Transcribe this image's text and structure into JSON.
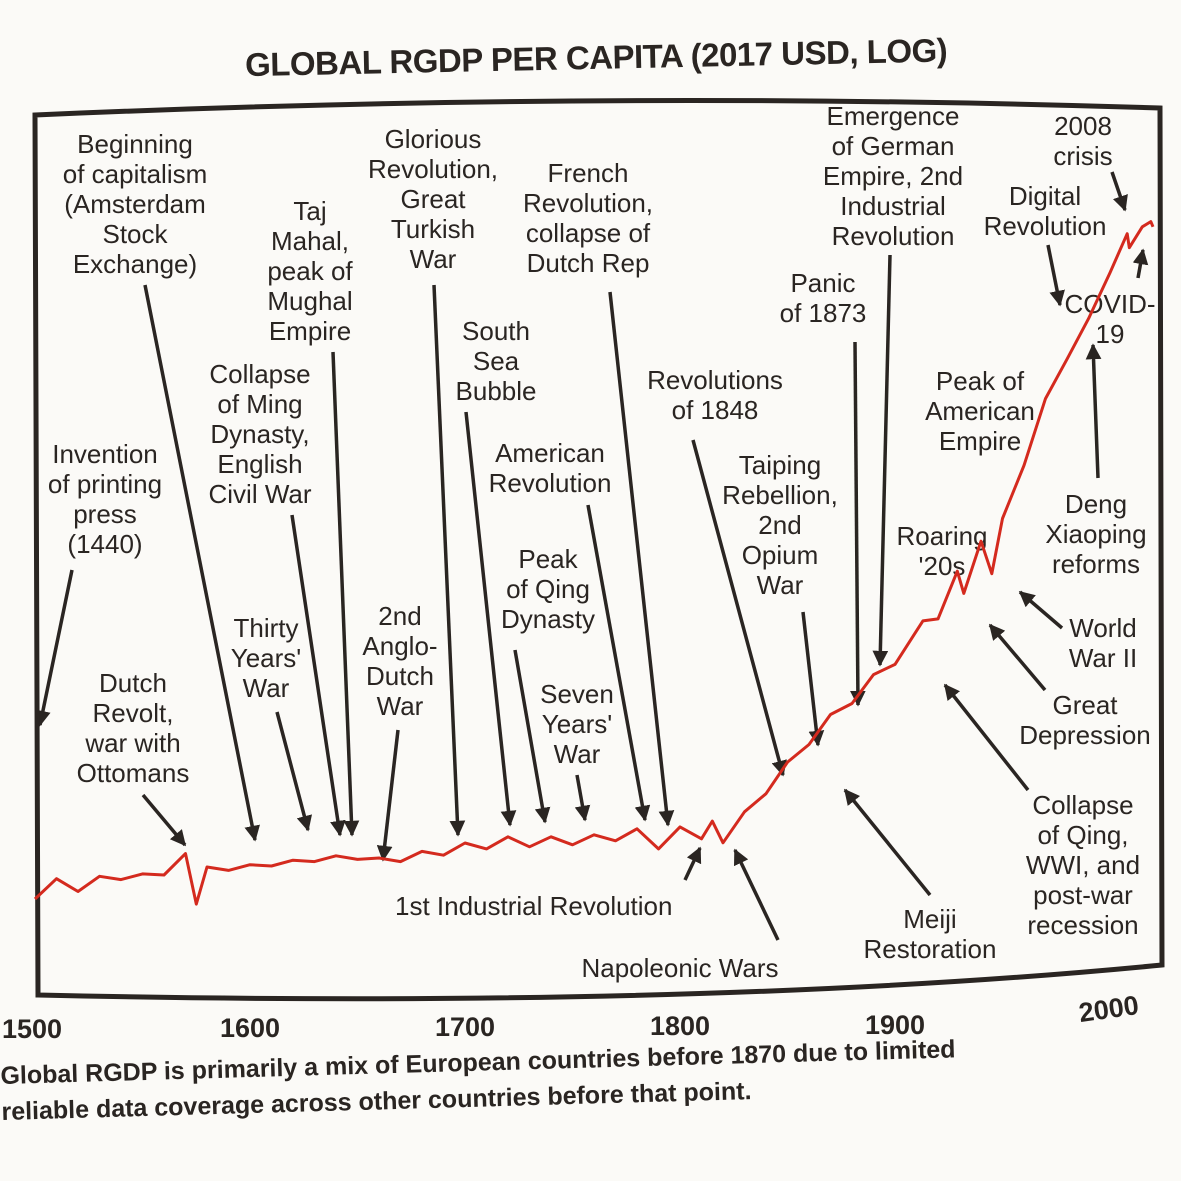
{
  "chart_data": {
    "type": "line",
    "title": "GLOBAL RGDP PER CAPITA (2017 USD, LOG)",
    "xlabel": "",
    "ylabel": "",
    "y_scale": "log",
    "y_ticks_shown": false,
    "grid": false,
    "legend": "none",
    "x_ticks": [
      "1500",
      "1600",
      "1700",
      "1800",
      "1900",
      "2000"
    ],
    "xlim": [
      1500,
      2025
    ],
    "line_color": "#d42a1e",
    "series": [
      {
        "x": [
          1500,
          1510,
          1520,
          1530,
          1540,
          1550,
          1560,
          1570,
          1575,
          1580,
          1590,
          1600,
          1610,
          1620,
          1630,
          1640,
          1650,
          1660,
          1670,
          1680,
          1690,
          1700,
          1710,
          1720,
          1730,
          1740,
          1750,
          1760,
          1770,
          1780,
          1790,
          1800,
          1810,
          1815,
          1820,
          1830,
          1840,
          1850,
          1860,
          1870,
          1880,
          1890,
          1900,
          1913,
          1920,
          1929,
          1932,
          1940,
          1945,
          1950,
          1960,
          1970,
          1980,
          1990,
          2000,
          2008,
          2009,
          2015,
          2019,
          2020
        ],
        "y": [
          980,
          1030,
          1010,
          1040,
          1060,
          1050,
          1080,
          1140,
          960,
          1080,
          1100,
          1090,
          1120,
          1110,
          1140,
          1130,
          1150,
          1120,
          1140,
          1150,
          1170,
          1190,
          1200,
          1220,
          1210,
          1220,
          1220,
          1230,
          1240,
          1260,
          1200,
          1270,
          1250,
          1300,
          1230,
          1350,
          1500,
          1650,
          1830,
          2000,
          2160,
          2350,
          2530,
          2920,
          3040,
          3570,
          3370,
          4030,
          3650,
          4460,
          5600,
          7240,
          8600,
          10000,
          12200,
          14100,
          13500,
          14500,
          15000,
          14500
        ]
      }
    ]
  },
  "annotations": [
    {
      "lines": [
        "Beginning",
        "of capitalism",
        "(Amsterdam",
        "Stock",
        "Exchange)"
      ]
    },
    {
      "lines": [
        "Invention",
        "of printing",
        "press",
        "(1440)"
      ]
    },
    {
      "lines": [
        "Taj",
        "Mahal,",
        "peak of",
        "Mughal",
        "Empire"
      ]
    },
    {
      "lines": [
        "Collapse",
        "of Ming",
        "Dynasty,",
        "English",
        "Civil War"
      ]
    },
    {
      "lines": [
        "Thirty",
        "Years'",
        "War"
      ]
    },
    {
      "lines": [
        "Dutch",
        "Revolt,",
        "war with",
        "Ottomans"
      ]
    },
    {
      "lines": [
        "Glorious",
        "Revolution,",
        "Great",
        "Turkish",
        "War"
      ]
    },
    {
      "lines": [
        "2nd",
        "Anglo-",
        "Dutch",
        "War"
      ]
    },
    {
      "lines": [
        "South",
        "Sea",
        "Bubble"
      ]
    },
    {
      "lines": [
        "French",
        "Revolution,",
        "collapse of",
        "Dutch Rep"
      ]
    },
    {
      "lines": [
        "American",
        "Revolution"
      ]
    },
    {
      "lines": [
        "Peak",
        "of Qing",
        "Dynasty"
      ]
    },
    {
      "lines": [
        "Seven",
        "Years'",
        "War"
      ]
    },
    {
      "lines": [
        "Revolutions",
        "of 1848"
      ]
    },
    {
      "lines": [
        "Taiping",
        "Rebellion,",
        "2nd",
        "Opium",
        "War"
      ]
    },
    {
      "lines": [
        "Panic",
        "of 1873"
      ]
    },
    {
      "lines": [
        "Emergence",
        "of German",
        "Empire, 2nd",
        "Industrial",
        "Revolution"
      ]
    },
    {
      "lines": [
        "2008",
        "crisis"
      ]
    },
    {
      "lines": [
        "Digital",
        "Revolution"
      ]
    },
    {
      "lines": [
        "COVID-",
        "19"
      ]
    },
    {
      "lines": [
        "Peak of",
        "American",
        "Empire"
      ]
    },
    {
      "lines": [
        "Deng",
        "Xiaoping",
        "reforms"
      ]
    },
    {
      "lines": [
        "Roaring",
        "'20s"
      ]
    },
    {
      "lines": [
        "World",
        "War II"
      ]
    },
    {
      "lines": [
        "Great",
        "Depression"
      ]
    },
    {
      "lines": [
        "Collapse",
        "of Qing,",
        "WWI, and",
        "post-war",
        "recession"
      ]
    },
    {
      "lines": [
        "Meiji",
        "Restoration"
      ]
    },
    {
      "lines": [
        "1st Industrial Revolution"
      ]
    },
    {
      "lines": [
        "Napoleonic Wars"
      ]
    }
  ],
  "caption": [
    "Global RGDP is primarily a mix of European countries before 1870 due to limited",
    "reliable data coverage across other countries before that point."
  ]
}
